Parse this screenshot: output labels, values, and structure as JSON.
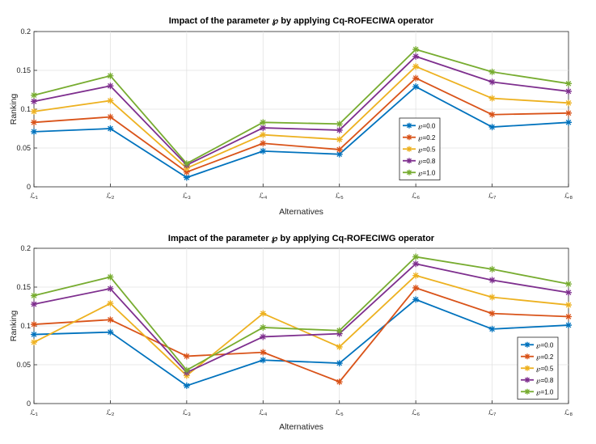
{
  "chart_data": [
    {
      "type": "line",
      "title": "Impact of the parameter ℘ by applying Cq-ROFECIWA operator",
      "xlabel": "Alternatives",
      "ylabel": "Ranking",
      "categories": [
        "ℒ₁",
        "ℒ₂",
        "ℒ₃",
        "ℒ₄",
        "ℒ₅",
        "ℒ₆",
        "ℒ₇",
        "ℒ₈"
      ],
      "ylim": [
        0,
        0.2
      ],
      "yticks": [
        0,
        0.05,
        0.1,
        0.15,
        0.2
      ],
      "ytick_labels": [
        "0",
        "0.05",
        "0.1",
        "0.15",
        "0.2"
      ],
      "grid": true,
      "legend_position": "middle-right",
      "series": [
        {
          "name": "℘=0.0",
          "color": "#0072BD",
          "values": [
            0.071,
            0.075,
            0.012,
            0.046,
            0.042,
            0.129,
            0.077,
            0.083
          ]
        },
        {
          "name": "℘=0.2",
          "color": "#D95319",
          "values": [
            0.083,
            0.09,
            0.019,
            0.056,
            0.048,
            0.14,
            0.093,
            0.095
          ]
        },
        {
          "name": "℘=0.5",
          "color": "#EDB120",
          "values": [
            0.097,
            0.111,
            0.024,
            0.067,
            0.061,
            0.155,
            0.114,
            0.108
          ]
        },
        {
          "name": "℘=0.8",
          "color": "#7E2F8E",
          "values": [
            0.11,
            0.13,
            0.028,
            0.076,
            0.073,
            0.168,
            0.135,
            0.123
          ]
        },
        {
          "name": "℘=1.0",
          "color": "#77AC30",
          "values": [
            0.118,
            0.143,
            0.03,
            0.083,
            0.081,
            0.177,
            0.148,
            0.133
          ]
        }
      ]
    },
    {
      "type": "line",
      "title": "Impact of the parameter ℘ by applying Cq-ROFECIWG operator",
      "xlabel": "Alternatives",
      "ylabel": "Ranking",
      "categories": [
        "ℒ₁",
        "ℒ₂",
        "ℒ₃",
        "ℒ₄",
        "ℒ₅",
        "ℒ₆",
        "ℒ₇",
        "ℒ₈"
      ],
      "ylim": [
        0,
        0.2
      ],
      "yticks": [
        0,
        0.05,
        0.1,
        0.15,
        0.2
      ],
      "ytick_labels": [
        "0",
        "0.05",
        "0.1",
        "0.15",
        "0.2"
      ],
      "grid": true,
      "legend_position": "bottom-right",
      "series": [
        {
          "name": "℘=0.0",
          "color": "#0072BD",
          "values": [
            0.089,
            0.092,
            0.023,
            0.056,
            0.052,
            0.134,
            0.096,
            0.101
          ]
        },
        {
          "name": "℘=0.2",
          "color": "#D95319",
          "values": [
            0.102,
            0.108,
            0.061,
            0.066,
            0.028,
            0.149,
            0.116,
            0.112
          ]
        },
        {
          "name": "℘=0.5",
          "color": "#EDB120",
          "values": [
            0.079,
            0.129,
            0.036,
            0.116,
            0.073,
            0.165,
            0.137,
            0.127
          ]
        },
        {
          "name": "℘=0.8",
          "color": "#7E2F8E",
          "values": [
            0.128,
            0.148,
            0.04,
            0.086,
            0.09,
            0.18,
            0.159,
            0.143
          ]
        },
        {
          "name": "℘=1.0",
          "color": "#77AC30",
          "values": [
            0.139,
            0.163,
            0.043,
            0.098,
            0.094,
            0.189,
            0.173,
            0.154
          ]
        }
      ]
    }
  ]
}
